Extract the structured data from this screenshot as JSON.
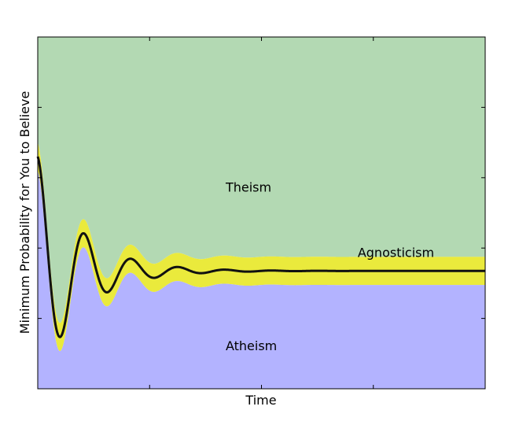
{
  "chart_data": {
    "type": "area",
    "title": "",
    "xlabel": "Time",
    "ylabel": "Minimum Probability for You to Believe",
    "xlim": [
      0,
      1
    ],
    "ylim": [
      0,
      1
    ],
    "grid": false,
    "legend": "none",
    "regions": [
      {
        "name": "Theism",
        "color": "#b3d9b3"
      },
      {
        "name": "Agnosticism",
        "color": "#eaea3c"
      },
      {
        "name": "Atheism",
        "color": "#b3b3ff"
      }
    ],
    "curve": {
      "description": "damped oscillation",
      "start": 0.66,
      "first_min": 0.15,
      "equilibrium": 0.335,
      "end": 0.335,
      "line_color": "#111111"
    },
    "band_halfwidth": 0.04,
    "annotations": [
      {
        "text": "Theism",
        "x": 0.42,
        "y": 0.56
      },
      {
        "text": "Agnosticism",
        "x": 0.715,
        "y": 0.375
      },
      {
        "text": "Atheism",
        "x": 0.42,
        "y": 0.11
      }
    ]
  }
}
